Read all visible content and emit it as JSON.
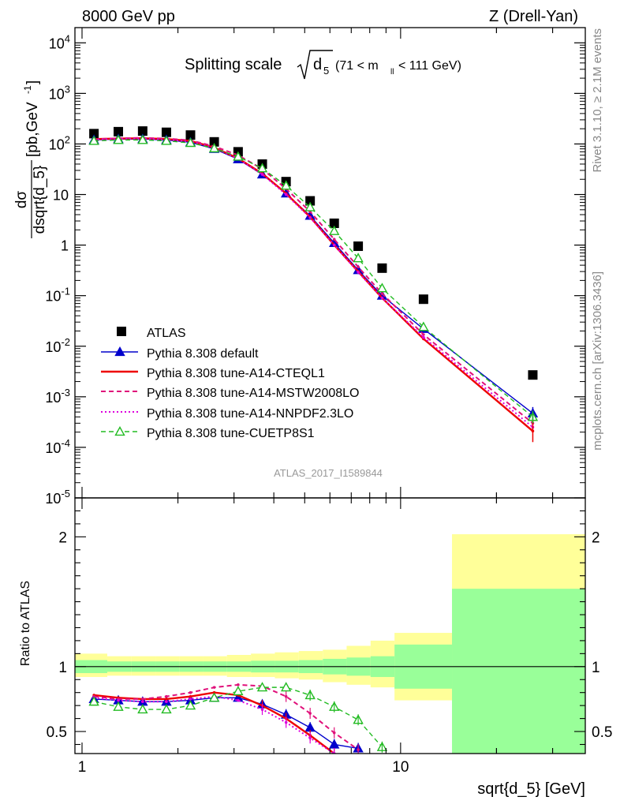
{
  "header": {
    "left": "8000 GeV pp",
    "right": "Z (Drell-Yan)"
  },
  "plot_title": {
    "main": "Splitting scale",
    "sqrt_arg": "d",
    "sqrt_sub": "5",
    "range_open": "(71 < m",
    "range_sub": "ll",
    "range_close": " < 111 GeV)"
  },
  "side_labels": {
    "rivet": "Rivet 3.1.10, ≥ 2.1M events",
    "mcplots": "mcplots.cern.ch [arXiv:1306.3436]"
  },
  "analysis_label": "ATLAS_2017_I1589844",
  "y_title_top": {
    "num": "dσ",
    "den": "dsqrt{d_5}",
    "unit": "[pb,GeV",
    "unit_sup": "-1",
    "unit_close": "]"
  },
  "y_title_bottom": "Ratio to ATLAS",
  "x_title": "sqrt{d_5} [GeV]",
  "colors": {
    "data": "#000000",
    "default": "#0000cc",
    "cteql1": "#ee0000",
    "mstw": "#e0107a",
    "nnpdf": "#dd00dd",
    "cuetp8s1": "#22bb22",
    "band_inner": "#99ff99",
    "band_outer": "#ffff99"
  },
  "chart_data": [
    {
      "type": "line",
      "name": "main",
      "xscale": "log",
      "yscale": "log",
      "xlim": [
        0.95,
        38
      ],
      "ylim": [
        1e-05,
        20000
      ],
      "x_ticks": [
        "1",
        "10"
      ],
      "y_ticks": [
        "10^-5",
        "10^-4",
        "10^-3",
        "10^-2",
        "10^-1",
        "1",
        "10",
        "10^2",
        "10^3",
        "10^4"
      ],
      "legend_position": "lower-left",
      "series": [
        {
          "name": "ATLAS",
          "marker": "square",
          "x": [
            1.09,
            1.3,
            1.55,
            1.84,
            2.19,
            2.6,
            3.09,
            3.68,
            4.37,
            5.2,
            6.19,
            7.36,
            8.75,
            11.8,
            26.0
          ],
          "y": [
            160,
            175,
            180,
            170,
            150,
            110,
            70,
            40,
            18,
            7.5,
            2.7,
            0.95,
            0.35,
            0.085,
            0.0027
          ]
        },
        {
          "name": "Pythia 8.308 default",
          "marker": "triangle",
          "x": [
            1.09,
            1.3,
            1.55,
            1.84,
            2.19,
            2.6,
            3.09,
            3.68,
            4.37,
            5.2,
            6.19,
            7.36,
            8.75,
            11.8,
            26.0
          ],
          "y": [
            120,
            125,
            125,
            120,
            108,
            80,
            50,
            25,
            10.5,
            3.8,
            1.1,
            0.32,
            0.1,
            0.022,
            0.00047
          ]
        },
        {
          "name": "Pythia 8.308 tune-A14-CTEQL1",
          "marker": "none",
          "x": [
            1.09,
            1.3,
            1.55,
            1.84,
            2.19,
            2.6,
            3.09,
            3.68,
            4.37,
            5.2,
            6.19,
            7.36,
            8.75,
            11.8,
            26.0
          ],
          "y": [
            125,
            128,
            130,
            125,
            115,
            85,
            52,
            26,
            10.5,
            3.6,
            1.0,
            0.3,
            0.09,
            0.014,
            0.00021
          ]
        },
        {
          "name": "Pythia 8.308 tune-A14-MSTW2008LO",
          "marker": "none",
          "x": [
            1.09,
            1.3,
            1.55,
            1.84,
            2.19,
            2.6,
            3.09,
            3.68,
            4.37,
            5.2,
            6.19,
            7.36,
            8.75,
            11.8,
            26.0
          ],
          "y": [
            124,
            130,
            132,
            128,
            118,
            90,
            60,
            32,
            13,
            4.6,
            1.3,
            0.37,
            0.11,
            0.017,
            0.0003
          ]
        },
        {
          "name": "Pythia 8.308 tune-A14-NNPDF2.3LO",
          "marker": "none",
          "x": [
            1.09,
            1.3,
            1.55,
            1.84,
            2.19,
            2.6,
            3.09,
            3.68,
            4.37,
            5.2,
            6.19,
            7.36,
            8.75,
            11.8,
            26.0
          ],
          "y": [
            122,
            126,
            128,
            122,
            112,
            84,
            51,
            25,
            10,
            3.5,
            1.0,
            0.29,
            0.09,
            0.015,
            0.00025
          ]
        },
        {
          "name": "Pythia 8.308 tune-CUETP8S1",
          "marker": "open-triangle",
          "x": [
            1.09,
            1.3,
            1.55,
            1.84,
            2.19,
            2.6,
            3.09,
            3.68,
            4.37,
            5.2,
            6.19,
            7.36,
            8.75,
            11.8,
            26.0
          ],
          "y": [
            115,
            120,
            120,
            115,
            105,
            82,
            56,
            33,
            15,
            5.6,
            1.9,
            0.55,
            0.14,
            0.024,
            0.0004
          ]
        }
      ]
    },
    {
      "type": "line",
      "name": "ratio",
      "xscale": "log",
      "xlim": [
        0.95,
        38
      ],
      "ylim": [
        0.33,
        2.3
      ],
      "y_ticks": [
        "0.5",
        "1",
        "2"
      ],
      "bands": {
        "edges": [
          0.95,
          1.2,
          1.43,
          1.7,
          2.02,
          2.4,
          2.85,
          3.39,
          4.03,
          4.79,
          5.7,
          6.77,
          8.05,
          9.57,
          14.5,
          38
        ],
        "inner_lo": [
          0.95,
          0.96,
          0.96,
          0.96,
          0.96,
          0.96,
          0.96,
          0.955,
          0.955,
          0.95,
          0.94,
          0.93,
          0.92,
          0.83,
          0.25
        ],
        "inner_hi": [
          1.05,
          1.04,
          1.04,
          1.04,
          1.04,
          1.04,
          1.04,
          1.045,
          1.045,
          1.05,
          1.06,
          1.07,
          1.08,
          1.17,
          1.6
        ],
        "outer_lo": [
          0.92,
          0.93,
          0.93,
          0.93,
          0.93,
          0.93,
          0.92,
          0.92,
          0.91,
          0.9,
          0.88,
          0.86,
          0.84,
          0.74,
          0.47
        ],
        "outer_hi": [
          1.1,
          1.08,
          1.08,
          1.08,
          1.08,
          1.08,
          1.09,
          1.1,
          1.11,
          1.12,
          1.13,
          1.16,
          1.2,
          1.26,
          2.02
        ]
      },
      "series": [
        {
          "name": "Pythia 8.308 default",
          "x": [
            1.09,
            1.3,
            1.55,
            1.84,
            2.19,
            2.6,
            3.09,
            3.68,
            4.37,
            5.2,
            6.19,
            7.36
          ],
          "y": [
            0.75,
            0.74,
            0.73,
            0.73,
            0.74,
            0.76,
            0.76,
            0.71,
            0.63,
            0.53,
            0.4,
            0.37
          ]
        },
        {
          "name": "Pythia 8.308 tune-A14-CTEQL1",
          "x": [
            1.09,
            1.3,
            1.55,
            1.84,
            2.19,
            2.6,
            3.09,
            3.68,
            4.37,
            5.2,
            6.19
          ],
          "y": [
            0.78,
            0.76,
            0.75,
            0.75,
            0.77,
            0.8,
            0.78,
            0.7,
            0.6,
            0.47,
            0.33
          ]
        },
        {
          "name": "Pythia 8.308 tune-A14-MSTW2008LO",
          "x": [
            1.09,
            1.3,
            1.55,
            1.84,
            2.19,
            2.6,
            3.09,
            3.68,
            4.37,
            5.2,
            6.19,
            7.36
          ],
          "y": [
            0.77,
            0.75,
            0.75,
            0.77,
            0.8,
            0.84,
            0.86,
            0.85,
            0.77,
            0.64,
            0.49,
            0.36
          ]
        },
        {
          "name": "Pythia 8.308 tune-A14-NNPDF2.3LO",
          "x": [
            1.09,
            1.3,
            1.55,
            1.84,
            2.19,
            2.6,
            3.09,
            3.68,
            4.37,
            5.2,
            6.19
          ],
          "y": [
            0.76,
            0.74,
            0.73,
            0.73,
            0.75,
            0.77,
            0.74,
            0.67,
            0.57,
            0.45,
            0.33
          ]
        },
        {
          "name": "Pythia 8.308 tune-CUETP8S1",
          "x": [
            1.09,
            1.3,
            1.55,
            1.84,
            2.19,
            2.6,
            3.09,
            3.68,
            4.37,
            5.2,
            6.19,
            7.36,
            8.75
          ],
          "y": [
            0.73,
            0.69,
            0.67,
            0.67,
            0.7,
            0.76,
            0.81,
            0.84,
            0.84,
            0.78,
            0.69,
            0.59,
            0.38
          ]
        }
      ]
    }
  ]
}
